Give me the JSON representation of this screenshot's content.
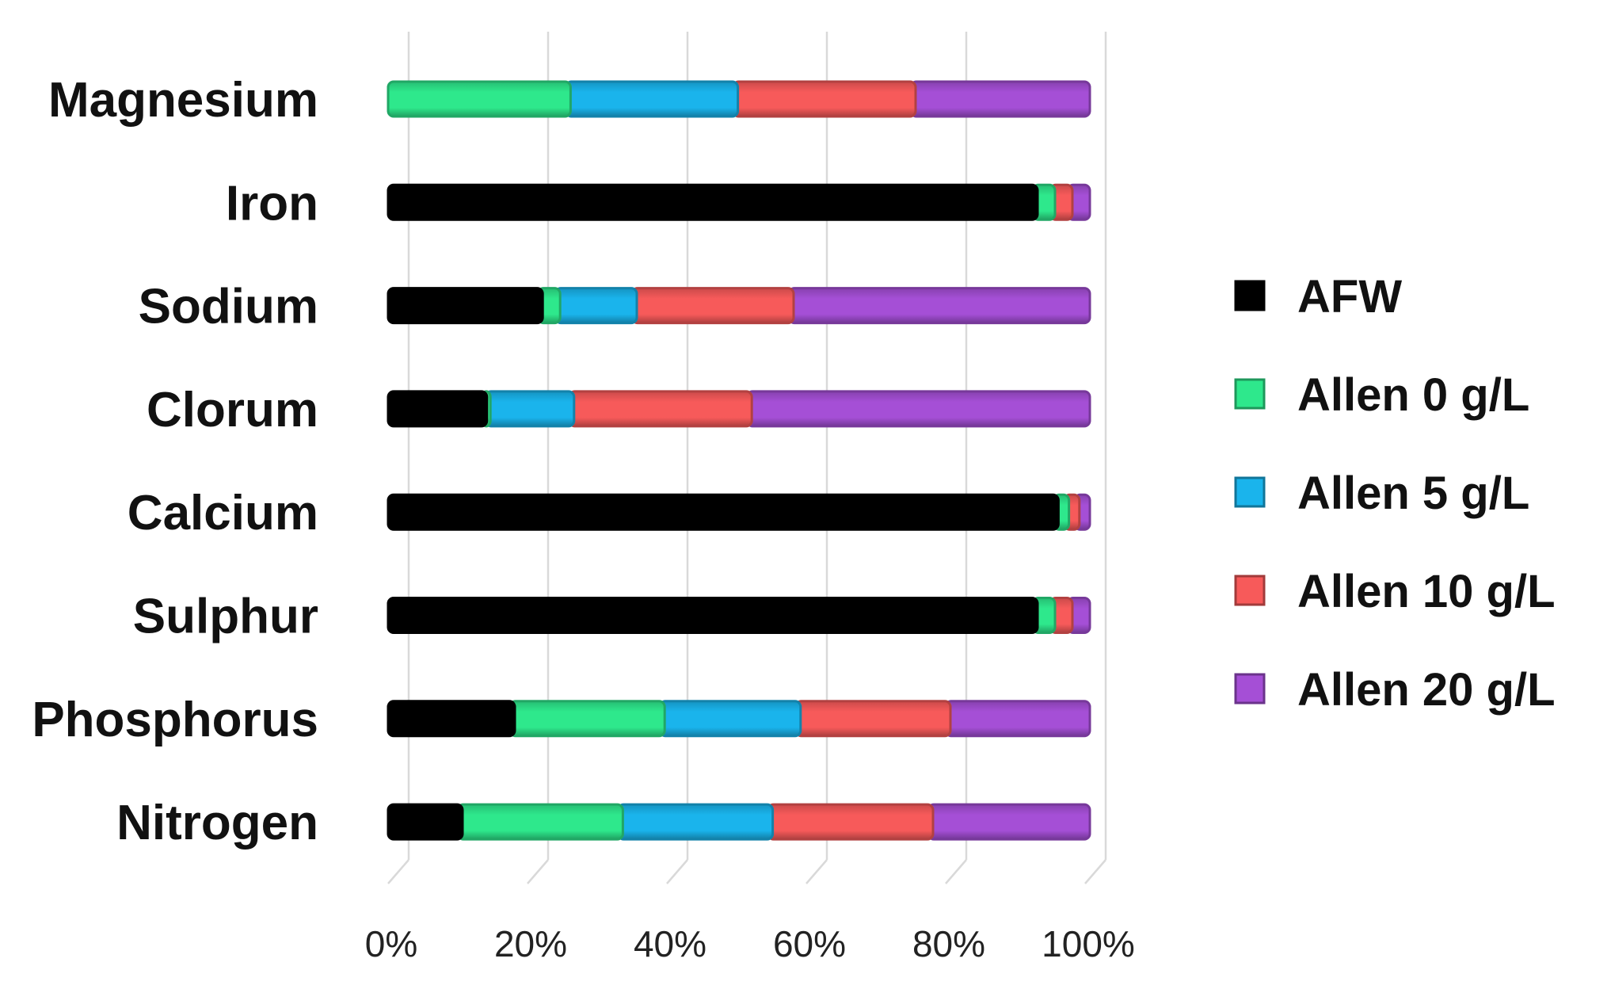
{
  "chart_data": {
    "type": "bar",
    "orientation": "horizontal",
    "stacked": "percent",
    "categories": [
      "Magnesium",
      "Iron",
      "Sodium",
      "Clorum",
      "Calcium",
      "Sulphur",
      "Phosphorus",
      "Nitrogen"
    ],
    "series": [
      {
        "name": "AFW",
        "color": "#000000",
        "values": [
          0,
          92.5,
          21.5,
          13.5,
          95.5,
          92.5,
          17.5,
          10
        ]
      },
      {
        "name": "Allen 0 g/L",
        "color": "#2ee88c",
        "values": [
          25.5,
          2.5,
          2.5,
          0.5,
          1.5,
          2.5,
          21.5,
          23
        ]
      },
      {
        "name": "Allen 5 g/L",
        "color": "#1ab4ec",
        "values": [
          24,
          0,
          11,
          12,
          0,
          0,
          19.5,
          21.5
        ]
      },
      {
        "name": "Allen 10 g/L",
        "color": "#f75a5a",
        "values": [
          25.5,
          2.5,
          22.5,
          25.5,
          1.5,
          2.5,
          21.5,
          23
        ]
      },
      {
        "name": "Allen 20 g/L",
        "color": "#a54fd6",
        "values": [
          25,
          2.5,
          42.5,
          48.5,
          1.5,
          2.5,
          20,
          22.5
        ]
      }
    ],
    "xlim": [
      0,
      100
    ],
    "xticks": [
      "0%",
      "20%",
      "40%",
      "60%",
      "80%",
      "100%"
    ],
    "grid": true,
    "legend_position": "right",
    "title": "",
    "xlabel": "",
    "ylabel": ""
  }
}
